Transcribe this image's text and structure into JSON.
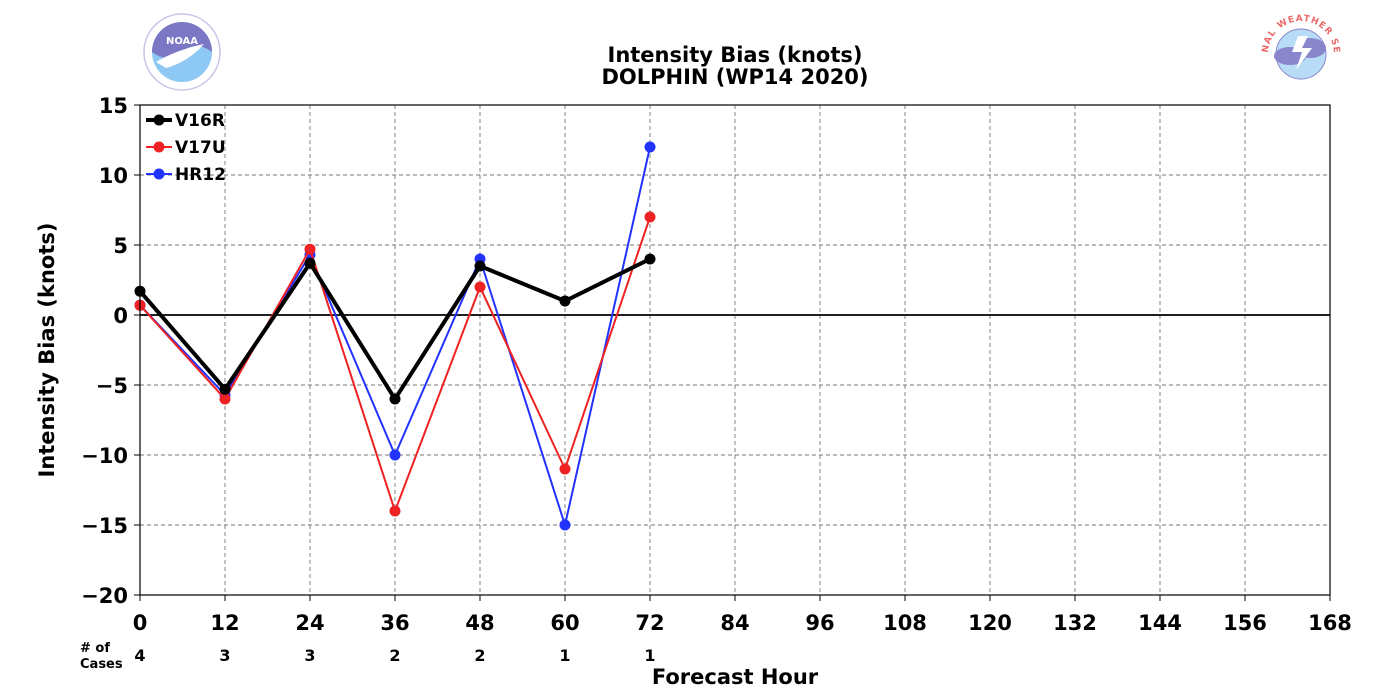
{
  "chart_data": {
    "type": "line",
    "title": "Intensity Bias (knots)",
    "subtitle": "DOLPHIN (WP14 2020)",
    "xlabel": "Forecast Hour",
    "ylabel": "Intensity Bias (knots)",
    "xlim": [
      0,
      168
    ],
    "ylim": [
      -20,
      15
    ],
    "xticks": [
      0,
      12,
      24,
      36,
      48,
      60,
      72,
      84,
      96,
      108,
      120,
      132,
      144,
      156,
      168
    ],
    "yticks": [
      -20,
      -15,
      -10,
      -5,
      0,
      5,
      10,
      15
    ],
    "grid": true,
    "legend_position": "top-left",
    "series": [
      {
        "name": "HR12",
        "color": "#2233ff",
        "lineWidth": 2,
        "x": [
          0,
          12,
          24,
          36,
          48,
          60,
          72
        ],
        "values": [
          0.7,
          -5.7,
          4.3,
          -10,
          4,
          -15,
          12
        ]
      },
      {
        "name": "V17U",
        "color": "#ee2222",
        "lineWidth": 2,
        "x": [
          0,
          12,
          24,
          36,
          48,
          60,
          72
        ],
        "values": [
          0.7,
          -6,
          4.7,
          -14,
          2,
          -11,
          7
        ]
      },
      {
        "name": "V16R",
        "color": "#000000",
        "lineWidth": 4,
        "x": [
          0,
          12,
          24,
          36,
          48,
          60,
          72
        ],
        "values": [
          1.7,
          -5.3,
          3.7,
          -6,
          3.5,
          1,
          4
        ]
      }
    ],
    "legend_order": [
      "V16R",
      "V17U",
      "HR12"
    ],
    "cases_label_line1": "# of",
    "cases_label_line2": "Cases",
    "cases": [
      {
        "x": 0,
        "n": "4"
      },
      {
        "x": 12,
        "n": "3"
      },
      {
        "x": 24,
        "n": "3"
      },
      {
        "x": 36,
        "n": "2"
      },
      {
        "x": 48,
        "n": "2"
      },
      {
        "x": 60,
        "n": "1"
      },
      {
        "x": 72,
        "n": "1"
      }
    ]
  },
  "logos": {
    "noaa_text": "NOAA",
    "nws_text": "NATIONAL WEATHER SERVICE"
  }
}
